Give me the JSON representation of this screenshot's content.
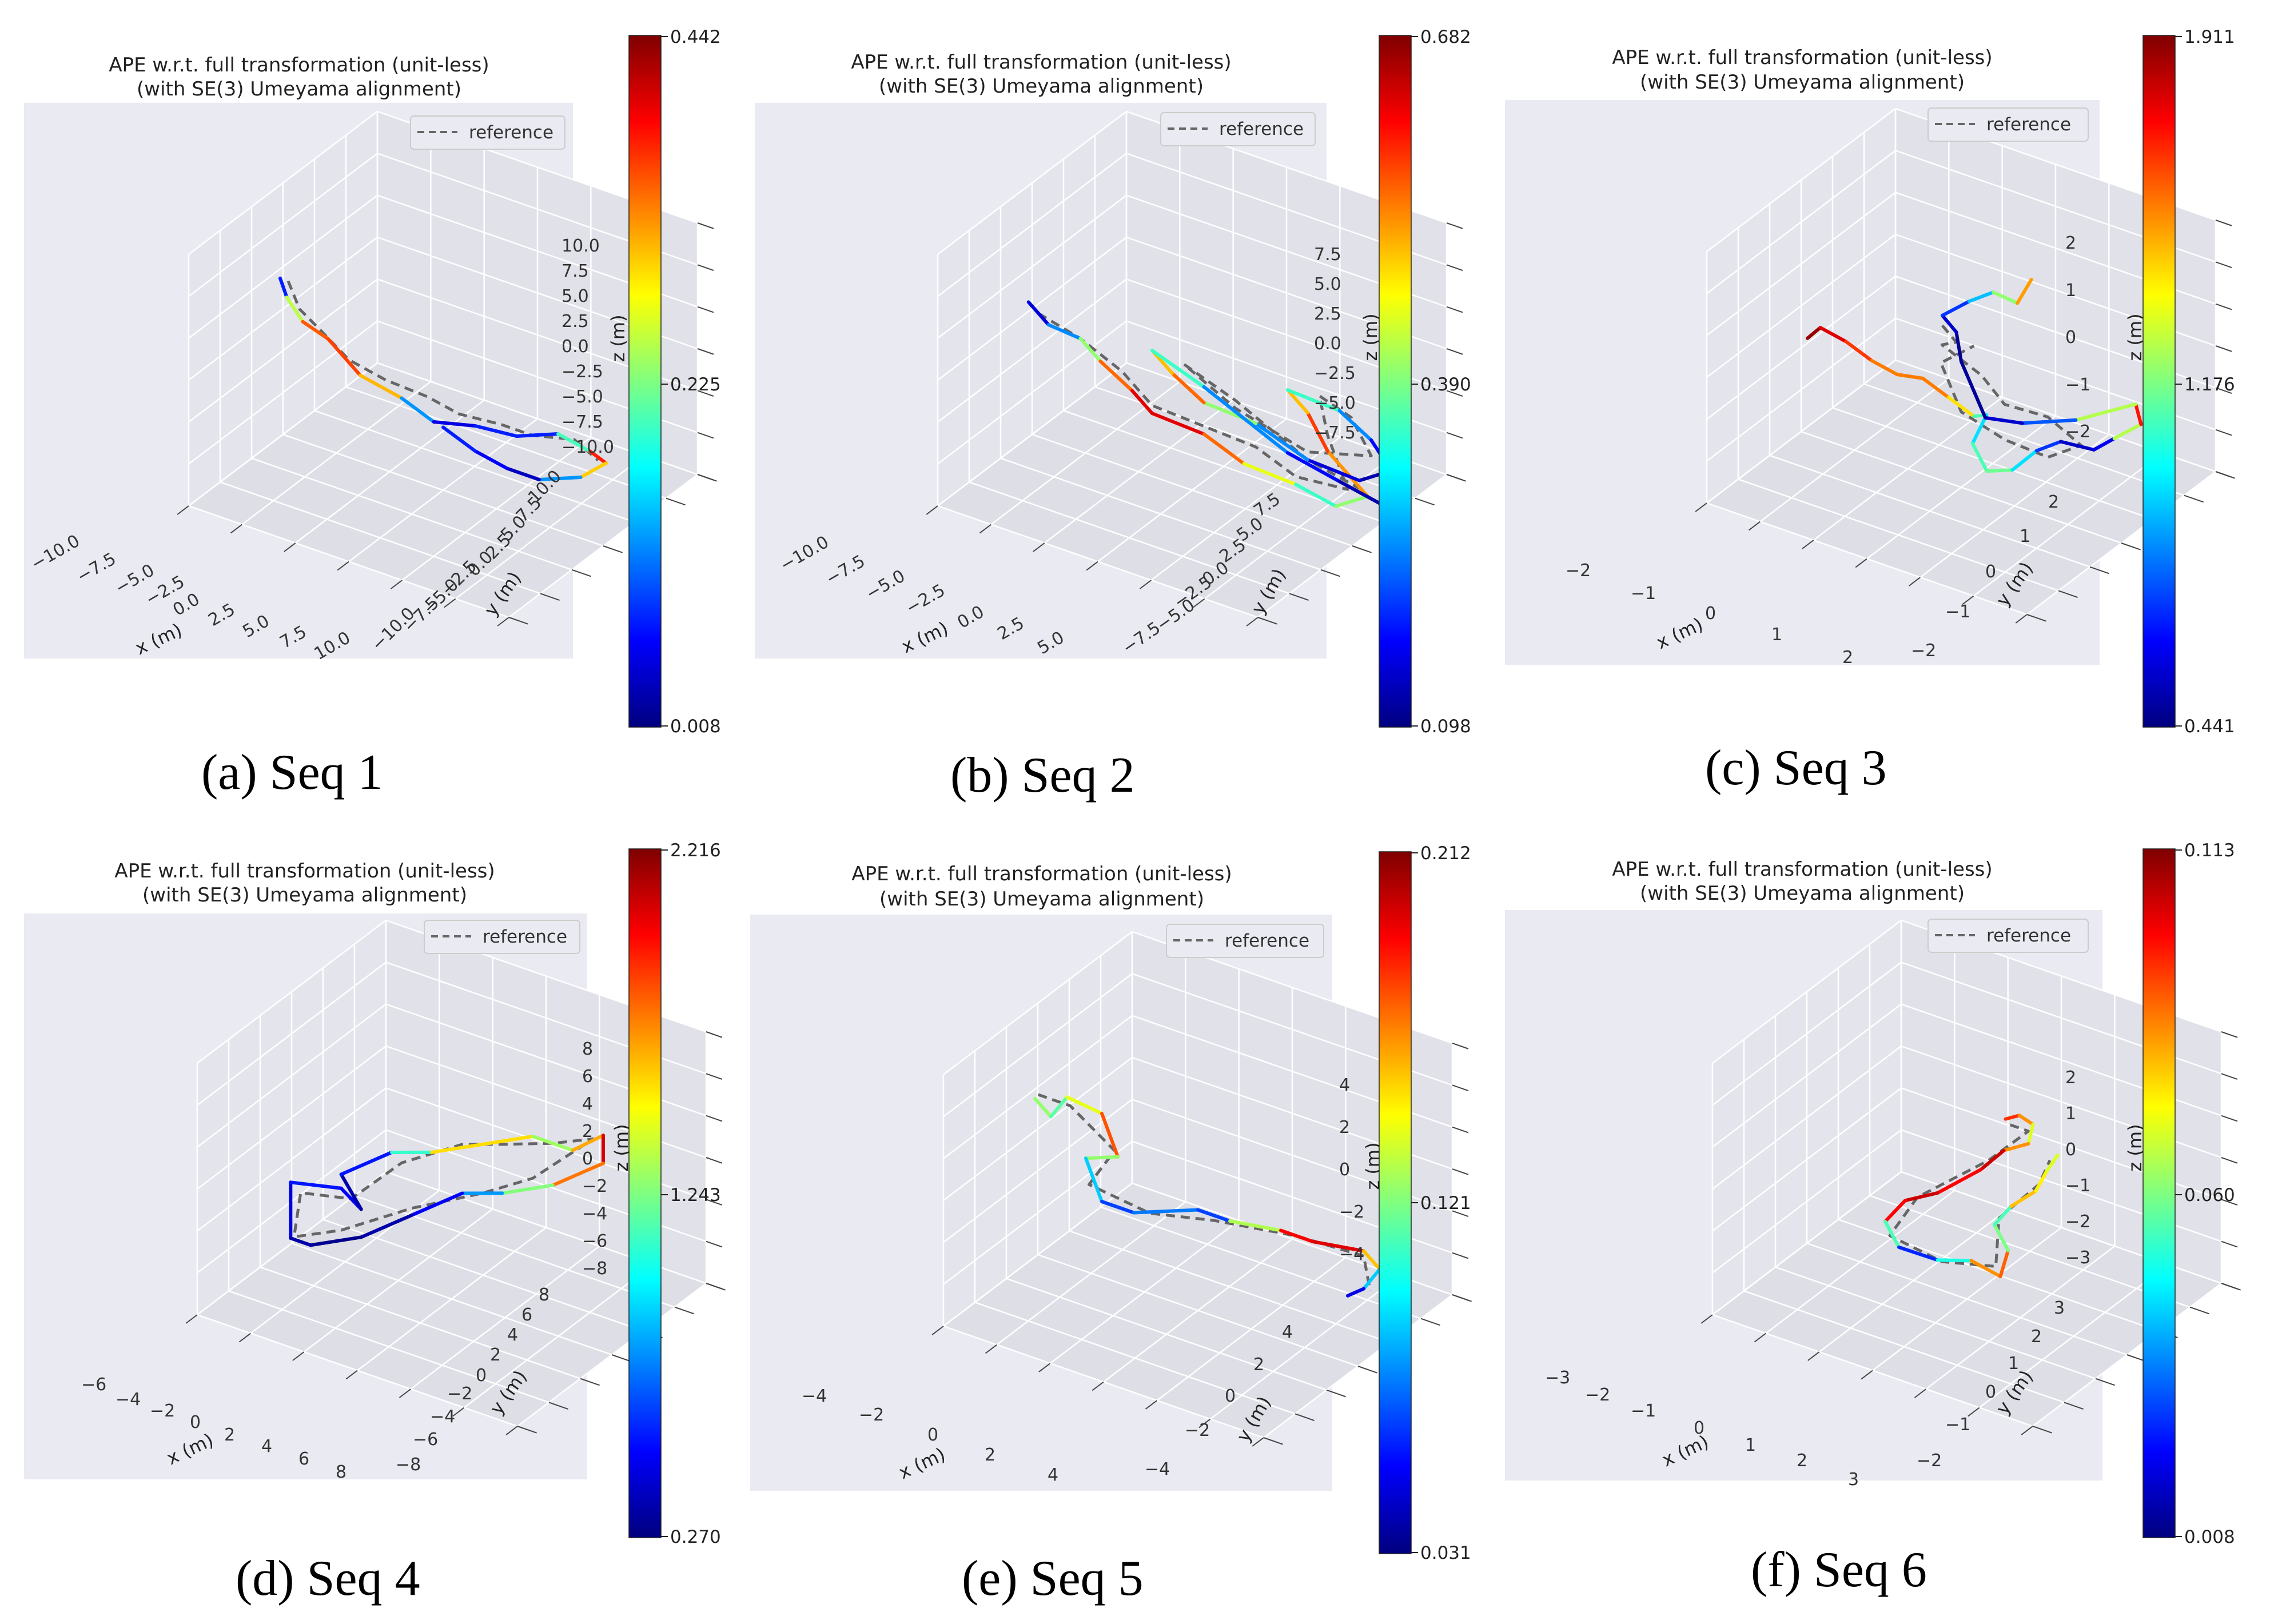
{
  "figure": {
    "title_line1": "APE w.r.t. full transformation (unit-less)",
    "title_line2": "(with SE(3) Umeyama alignment)",
    "legend_label": "reference",
    "xlabel": "x (m)",
    "ylabel": "y (m)",
    "zlabel": "z (m)",
    "colormap": [
      "#00007f",
      "#0000ff",
      "#0080ff",
      "#00ffff",
      "#80ff80",
      "#ffff00",
      "#ff8000",
      "#ff0000",
      "#7f0000"
    ],
    "reference_color": "#666666",
    "panel_bg": "#eaeaf2"
  },
  "chart_data": [
    {
      "type": "line3d",
      "caption": "(a) Seq 1",
      "x_ticks": [
        "−10.0",
        "−7.5",
        "−5.0",
        "−2.5",
        "0.0",
        "2.5",
        "5.0",
        "7.5",
        "10.0"
      ],
      "y_ticks": [
        "−10.0",
        "−7.5",
        "−5.0",
        "−2.5",
        "0.0",
        "2.5",
        "5.0",
        "7.5",
        "10.0"
      ],
      "z_ticks": [
        "10.0",
        "7.5",
        "5.0",
        "2.5",
        "0.0",
        "−2.5",
        "−5.0",
        "−7.5",
        "−10.0"
      ],
      "colorbar": {
        "max": "0.442",
        "mid": "0.225",
        "min": "0.008"
      },
      "xlim": [
        -10,
        10
      ],
      "ylim": [
        -10,
        10
      ],
      "zlim": [
        -10,
        10
      ],
      "traj": [
        [
          -9,
          -2,
          4
        ],
        [
          -8,
          -3,
          3.5
        ],
        [
          -7,
          -3,
          2
        ],
        [
          -6,
          -2,
          0.5
        ],
        [
          -4,
          -2,
          -1.5
        ],
        [
          -2,
          -1,
          -3
        ],
        [
          0,
          -1,
          -4
        ],
        [
          2,
          0,
          -4
        ],
        [
          4,
          1,
          -4.5
        ],
        [
          6,
          2,
          -4
        ],
        [
          8,
          2,
          -4.5
        ],
        [
          9,
          2,
          -5
        ],
        [
          8,
          1,
          -6
        ],
        [
          6,
          0,
          -6.5
        ],
        [
          4,
          0,
          -6.5
        ],
        [
          2,
          0,
          -6
        ],
        [
          0,
          0,
          -5
        ]
      ],
      "err": [
        0.05,
        0.1,
        0.4,
        0.3,
        0.42,
        0.2,
        0.05,
        0.05,
        0.1,
        0.05,
        0.35,
        0.4,
        0.2,
        0.05,
        0.02,
        0.1,
        0.05
      ],
      "ref": [
        [
          -8.5,
          -2,
          4
        ],
        [
          -7.5,
          -2.5,
          2.5
        ],
        [
          -6.5,
          -2,
          1
        ],
        [
          -5,
          -1.5,
          -1
        ],
        [
          -3,
          -1,
          -2
        ],
        [
          -1,
          0,
          -3
        ],
        [
          1,
          0,
          -3.5
        ],
        [
          3,
          1,
          -4
        ],
        [
          5,
          1,
          -4
        ],
        [
          7,
          2,
          -4
        ],
        [
          8.5,
          2,
          -5
        ]
      ]
    },
    {
      "type": "line3d",
      "caption": "(b) Seq 2",
      "x_ticks": [
        "−10.0",
        "−7.5",
        "−5.0",
        "−2.5",
        "0.0",
        "2.5",
        "5.0"
      ],
      "y_ticks": [
        "−7.5",
        "−5.0",
        "−2.5",
        "0.0",
        "2.5",
        "5.0",
        "7.5"
      ],
      "z_ticks": [
        "7.5",
        "5.0",
        "2.5",
        "0.0",
        "−2.5",
        "−5.0",
        "−7.5"
      ],
      "colorbar": {
        "max": "0.682",
        "mid": "0.390",
        "min": "0.098"
      },
      "xlim": [
        -10,
        6
      ],
      "ylim": [
        -8,
        8
      ],
      "zlim": [
        -8,
        8
      ],
      "traj": [
        [
          -9,
          -2,
          2
        ],
        [
          -8,
          -2,
          1
        ],
        [
          -7,
          -1,
          0
        ],
        [
          -6,
          -1,
          -1
        ],
        [
          -5,
          0,
          -3
        ],
        [
          -4,
          0,
          -4
        ],
        [
          -2,
          1,
          -5
        ],
        [
          0,
          1,
          -6
        ],
        [
          2,
          2,
          -7
        ],
        [
          4,
          2,
          -7.5
        ],
        [
          5,
          3,
          -7
        ],
        [
          3,
          3,
          -5
        ],
        [
          2,
          3,
          -3
        ],
        [
          1,
          3,
          -2
        ],
        [
          3,
          4,
          -3
        ],
        [
          4,
          5,
          -5
        ],
        [
          5,
          5,
          -6.5
        ],
        [
          4,
          4,
          -7
        ],
        [
          2,
          3,
          -6
        ],
        [
          0,
          2,
          -4
        ],
        [
          -2,
          1,
          -3
        ],
        [
          -3,
          0,
          -1
        ],
        [
          -4,
          0,
          0
        ],
        [
          -2,
          1,
          -2
        ],
        [
          1,
          3,
          -6
        ],
        [
          3,
          4,
          -7.5
        ],
        [
          5,
          4,
          -8
        ]
      ],
      "err": [
        0.1,
        0.2,
        0.3,
        0.5,
        0.6,
        0.65,
        0.6,
        0.5,
        0.4,
        0.3,
        0.5,
        0.55,
        0.6,
        0.4,
        0.3,
        0.2,
        0.15,
        0.1,
        0.2,
        0.3,
        0.5,
        0.6,
        0.4,
        0.3,
        0.2,
        0.15,
        0.1
      ],
      "ref": [
        [
          -8.5,
          -2,
          1.5
        ],
        [
          -7,
          -1,
          0
        ],
        [
          -5.5,
          0,
          -2
        ],
        [
          -4,
          0,
          -3.5
        ],
        [
          -2,
          1,
          -4.5
        ],
        [
          0,
          2,
          -5.5
        ],
        [
          2,
          2,
          -6.5
        ],
        [
          4,
          3,
          -7
        ],
        [
          3,
          3,
          -4
        ],
        [
          2,
          4,
          -2.5
        ],
        [
          3,
          5,
          -4
        ],
        [
          4,
          5,
          -6
        ],
        [
          2,
          3,
          -5.5
        ],
        [
          -1,
          2,
          -3.5
        ],
        [
          -3,
          1,
          -1
        ],
        [
          -1,
          2,
          -3
        ],
        [
          2,
          3,
          -6
        ],
        [
          4,
          4,
          -7.5
        ]
      ]
    },
    {
      "type": "line3d",
      "caption": "(c) Seq 3",
      "x_ticks": [
        "−2",
        "−1",
        "0",
        "1",
        "2"
      ],
      "y_ticks": [
        "−2",
        "−1",
        "0",
        "1",
        "2"
      ],
      "z_ticks": [
        "2",
        "1",
        "0",
        "−1",
        "−2"
      ],
      "colorbar": {
        "max": "1.911",
        "mid": "1.176",
        "min": "0.441"
      },
      "xlim": [
        -2.5,
        2.5
      ],
      "ylim": [
        -2.5,
        2.5
      ],
      "zlim": [
        -2.5,
        2.5
      ],
      "traj": [
        [
          -2.4,
          0,
          -0.6
        ],
        [
          -2.2,
          0,
          -0.3
        ],
        [
          -1.8,
          0,
          -0.4
        ],
        [
          -1.4,
          0,
          -0.6
        ],
        [
          -1,
          0,
          -0.7
        ],
        [
          -0.6,
          0,
          -0.6
        ],
        [
          -0.2,
          0,
          -0.8
        ],
        [
          0.2,
          0,
          -1
        ],
        [
          0.1,
          0.5,
          -1.3
        ],
        [
          0,
          0.3,
          -1.8
        ],
        [
          0.4,
          0,
          -2
        ],
        [
          0.8,
          0,
          -1.8
        ],
        [
          1,
          0.3,
          -1.5
        ],
        [
          1.2,
          0.6,
          -1.4
        ],
        [
          1.6,
          0.8,
          -1.5
        ],
        [
          1.8,
          1,
          -1.3
        ],
        [
          2.1,
          1.2,
          -1
        ],
        [
          1.9,
          1.4,
          -0.8
        ],
        [
          1.2,
          1,
          -1.2
        ],
        [
          0.6,
          0.6,
          -1.3
        ],
        [
          0.2,
          0.3,
          -1.2
        ],
        [
          0,
          0,
          0
        ],
        [
          0.1,
          -0.3,
          0.8
        ],
        [
          0,
          -0.5,
          1.2
        ],
        [
          0.3,
          -0.3,
          1.5
        ],
        [
          0.5,
          0,
          1.6
        ],
        [
          0.7,
          0.3,
          1.3
        ],
        [
          0.8,
          0.5,
          1.7
        ]
      ],
      "err": [
        1.9,
        1.85,
        1.7,
        1.6,
        1.5,
        1.6,
        1.5,
        1.3,
        0.9,
        1.0,
        1.2,
        1.1,
        0.8,
        0.6,
        0.5,
        0.7,
        1.8,
        1.6,
        0.9,
        0.6,
        0.5,
        0.45,
        0.5,
        0.6,
        0.8,
        1.0,
        1.4,
        1.6
      ],
      "ref": [
        [
          0,
          -0.5,
          1
        ],
        [
          0.1,
          -0.3,
          0.6
        ],
        [
          -0.3,
          0,
          0.2
        ],
        [
          0.2,
          0.2,
          -0.3
        ],
        [
          0.5,
          0.3,
          -0.8
        ],
        [
          1,
          0.6,
          -1
        ],
        [
          1.4,
          0.8,
          -1.5
        ],
        [
          1,
          0.6,
          -1.8
        ],
        [
          0.5,
          0.3,
          -1.5
        ],
        [
          0,
          0,
          -1
        ],
        [
          -0.2,
          -0.2,
          0
        ],
        [
          0.2,
          0,
          0.4
        ]
      ]
    },
    {
      "type": "line3d",
      "caption": "(d) Seq 4",
      "x_ticks": [
        "−6",
        "−4",
        "−2",
        "0",
        "2",
        "4",
        "6",
        "8"
      ],
      "y_ticks": [
        "−8",
        "−6",
        "−4",
        "−2",
        "0",
        "2",
        "4",
        "6",
        "8"
      ],
      "z_ticks": [
        "8",
        "6",
        "4",
        "2",
        "0",
        "−2",
        "−4",
        "−6",
        "−8"
      ],
      "colorbar": {
        "max": "2.216",
        "mid": "1.243",
        "min": "0.270"
      },
      "xlim": [
        -7,
        9
      ],
      "ylim": [
        -9,
        9
      ],
      "zlim": [
        -9,
        9
      ],
      "traj": [
        [
          -6,
          -2,
          -7
        ],
        [
          -6,
          -2,
          -3
        ],
        [
          -4,
          -1,
          -3
        ],
        [
          -3,
          -1,
          -4
        ],
        [
          -4,
          -1,
          -2
        ],
        [
          -2,
          0,
          0
        ],
        [
          0,
          0,
          1
        ],
        [
          2,
          1,
          2
        ],
        [
          4,
          2,
          3
        ],
        [
          6,
          2,
          3
        ],
        [
          7,
          3,
          4
        ],
        [
          7,
          3,
          2
        ],
        [
          5,
          2,
          0
        ],
        [
          3,
          1,
          -1
        ],
        [
          1,
          1,
          -2
        ],
        [
          -1,
          0,
          -4
        ],
        [
          -3,
          -1,
          -6
        ],
        [
          -5,
          -2,
          -7
        ],
        [
          -6,
          -2,
          -7
        ]
      ],
      "err": [
        0.4,
        0.5,
        0.6,
        0.4,
        0.3,
        0.8,
        1.4,
        1.7,
        1.4,
        1.2,
        2.1,
        2.0,
        1.5,
        1.0,
        0.6,
        0.4,
        0.3,
        0.3,
        0.4
      ],
      "ref": [
        [
          -5.8,
          -2,
          -6.5
        ],
        [
          -5.5,
          -2,
          -3.5
        ],
        [
          -3.5,
          -1,
          -3.5
        ],
        [
          -1.5,
          0,
          -0.5
        ],
        [
          1,
          1,
          1.5
        ],
        [
          3,
          1,
          2.5
        ],
        [
          5,
          2,
          3
        ],
        [
          6.5,
          3,
          3.5
        ],
        [
          4,
          2,
          0
        ],
        [
          2,
          1,
          -1.5
        ],
        [
          -1,
          0,
          -3.5
        ],
        [
          -4,
          -1,
          -6
        ],
        [
          -5.8,
          -2,
          -6.8
        ]
      ]
    },
    {
      "type": "line3d",
      "caption": "(e) Seq 5",
      "x_ticks": [
        "−4",
        "−2",
        "0",
        "2",
        "4"
      ],
      "y_ticks": [
        "−4",
        "−2",
        "0",
        "2",
        "4"
      ],
      "z_ticks": [
        "4",
        "2",
        "0",
        "−2",
        "−4"
      ],
      "colorbar": {
        "max": "0.212",
        "mid": "0.121",
        "min": "0.031"
      },
      "xlim": [
        -5,
        5
      ],
      "ylim": [
        -5,
        5
      ],
      "zlim": [
        -5,
        5
      ],
      "traj": [
        [
          -4.5,
          -1,
          2
        ],
        [
          -4,
          -1,
          1.5
        ],
        [
          -3.5,
          -1,
          2.5
        ],
        [
          -3,
          0,
          1.5
        ],
        [
          -2.5,
          0,
          0
        ],
        [
          -3.5,
          0,
          -0.5
        ],
        [
          -3,
          0,
          -2
        ],
        [
          -2,
          0,
          -2
        ],
        [
          -1,
          0,
          -1.5
        ],
        [
          0,
          0,
          -1
        ],
        [
          1,
          0,
          -1
        ],
        [
          2,
          1,
          -1.5
        ],
        [
          3,
          1,
          -1.5
        ],
        [
          4,
          2,
          -2
        ],
        [
          4.5,
          2,
          -2.5
        ],
        [
          4,
          2,
          -3.5
        ],
        [
          3.5,
          2,
          -4
        ]
      ],
      "err": [
        0.1,
        0.15,
        0.08,
        0.2,
        0.15,
        0.1,
        0.08,
        0.05,
        0.1,
        0.05,
        0.08,
        0.18,
        0.2,
        0.19,
        0.12,
        0.06,
        0.04
      ],
      "ref": [
        [
          -4.4,
          -1,
          2.2
        ],
        [
          -3.4,
          -1,
          2.2
        ],
        [
          -2.6,
          0,
          0.2
        ],
        [
          -3.4,
          0,
          -1.5
        ],
        [
          -1.5,
          0,
          -1.8
        ],
        [
          0.5,
          0,
          -1.2
        ],
        [
          2.5,
          1,
          -1.5
        ],
        [
          4,
          2,
          -2.2
        ],
        [
          4.2,
          2,
          -3.5
        ]
      ]
    },
    {
      "type": "line3d",
      "caption": "(f) Seq 6",
      "x_ticks": [
        "−3",
        "−2",
        "−1",
        "0",
        "1",
        "2",
        "3"
      ],
      "y_ticks": [
        "−2",
        "−1",
        "0",
        "1",
        "2",
        "3"
      ],
      "z_ticks": [
        "2",
        "1",
        "0",
        "−1",
        "−2",
        "−3"
      ],
      "colorbar": {
        "max": "0.113",
        "mid": "0.060",
        "min": "0.008"
      },
      "xlim": [
        -3.5,
        3.5
      ],
      "ylim": [
        -2.5,
        3.5
      ],
      "zlim": [
        -3.5,
        2.5
      ],
      "traj": [
        [
          0.5,
          1,
          0.7
        ],
        [
          0.8,
          1,
          0.9
        ],
        [
          1.1,
          1,
          0.8
        ],
        [
          1,
          1,
          0.3
        ],
        [
          0.6,
          0.8,
          0.1
        ],
        [
          0.3,
          0.5,
          -0.3
        ],
        [
          -0.3,
          0,
          -0.8
        ],
        [
          -0.8,
          -0.3,
          -1
        ],
        [
          -1.1,
          -0.5,
          -1.5
        ],
        [
          -0.8,
          -0.5,
          -2
        ],
        [
          -0.3,
          0,
          -2.4
        ],
        [
          0.3,
          0.2,
          -2.3
        ],
        [
          0.8,
          0.4,
          -2.6
        ],
        [
          0.9,
          0.5,
          -2
        ],
        [
          0.6,
          0.5,
          -1.5
        ],
        [
          0.9,
          0.6,
          -1
        ],
        [
          1.3,
          0.8,
          -0.6
        ],
        [
          1.4,
          1,
          -0.2
        ],
        [
          1.5,
          1.2,
          0.1
        ]
      ],
      "err": [
        0.1,
        0.09,
        0.08,
        0.06,
        0.11,
        0.1,
        0.1,
        0.11,
        0.09,
        0.02,
        0.03,
        0.07,
        0.1,
        0.08,
        0.04,
        0.07,
        0.09,
        0.06,
        0.08
      ],
      "ref": [
        [
          0.6,
          1,
          0.6
        ],
        [
          1,
          1,
          0.6
        ],
        [
          0.4,
          0.6,
          -0.1
        ],
        [
          -0.6,
          -0.2,
          -0.9
        ],
        [
          -1,
          -0.5,
          -1.8
        ],
        [
          -0.2,
          0,
          -2.4
        ],
        [
          0.7,
          0.4,
          -2.4
        ],
        [
          0.7,
          0.5,
          -1.3
        ],
        [
          1.3,
          0.9,
          -0.5
        ],
        [
          1.4,
          1.1,
          0
        ]
      ]
    }
  ]
}
